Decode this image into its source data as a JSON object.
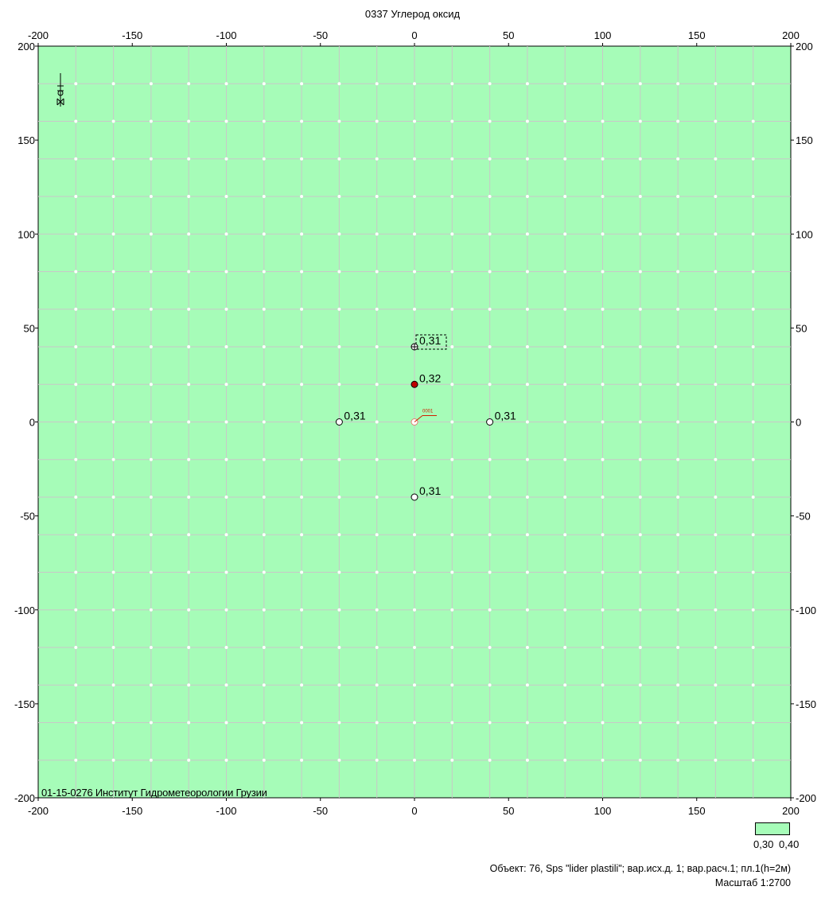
{
  "title": "0337 Углерод оксид",
  "organization": "01-15-0276 Институт Гидрометеорологии Грузии",
  "footer": {
    "object": "Объект: 76, Sps \"lider plastili\"; вар.исх.д. 1; вар.расч.1; пл.1(h=2м)",
    "scale": "Масштаб 1:2700"
  },
  "legend": {
    "color": "#a6fcb8",
    "min_label": "0,30",
    "max_label": "0,40"
  },
  "chart_data": {
    "type": "scatter",
    "xlim": [
      -200,
      200
    ],
    "ylim": [
      -200,
      200
    ],
    "grid": true,
    "grid_step": 20,
    "x_ticks": [
      -200,
      -150,
      -100,
      -50,
      0,
      50,
      100,
      150,
      200
    ],
    "y_ticks": [
      200,
      150,
      100,
      50,
      0,
      -50,
      -100,
      -150,
      -200
    ],
    "fill_color": "#a6fcb8",
    "grid_color": "#c8c8c8",
    "points": [
      {
        "x": 0,
        "y": 40,
        "label": "0,31",
        "style": "hatched"
      },
      {
        "x": 0,
        "y": 20,
        "label": "0,32",
        "style": "max"
      },
      {
        "x": -40,
        "y": 0,
        "label": "0,31",
        "style": "open"
      },
      {
        "x": 0,
        "y": 0,
        "label": "",
        "style": "source"
      },
      {
        "x": 40,
        "y": 0,
        "label": "0,31",
        "style": "open"
      },
      {
        "x": 0,
        "y": -40,
        "label": "0,31",
        "style": "open"
      }
    ],
    "source_label": "0001"
  }
}
